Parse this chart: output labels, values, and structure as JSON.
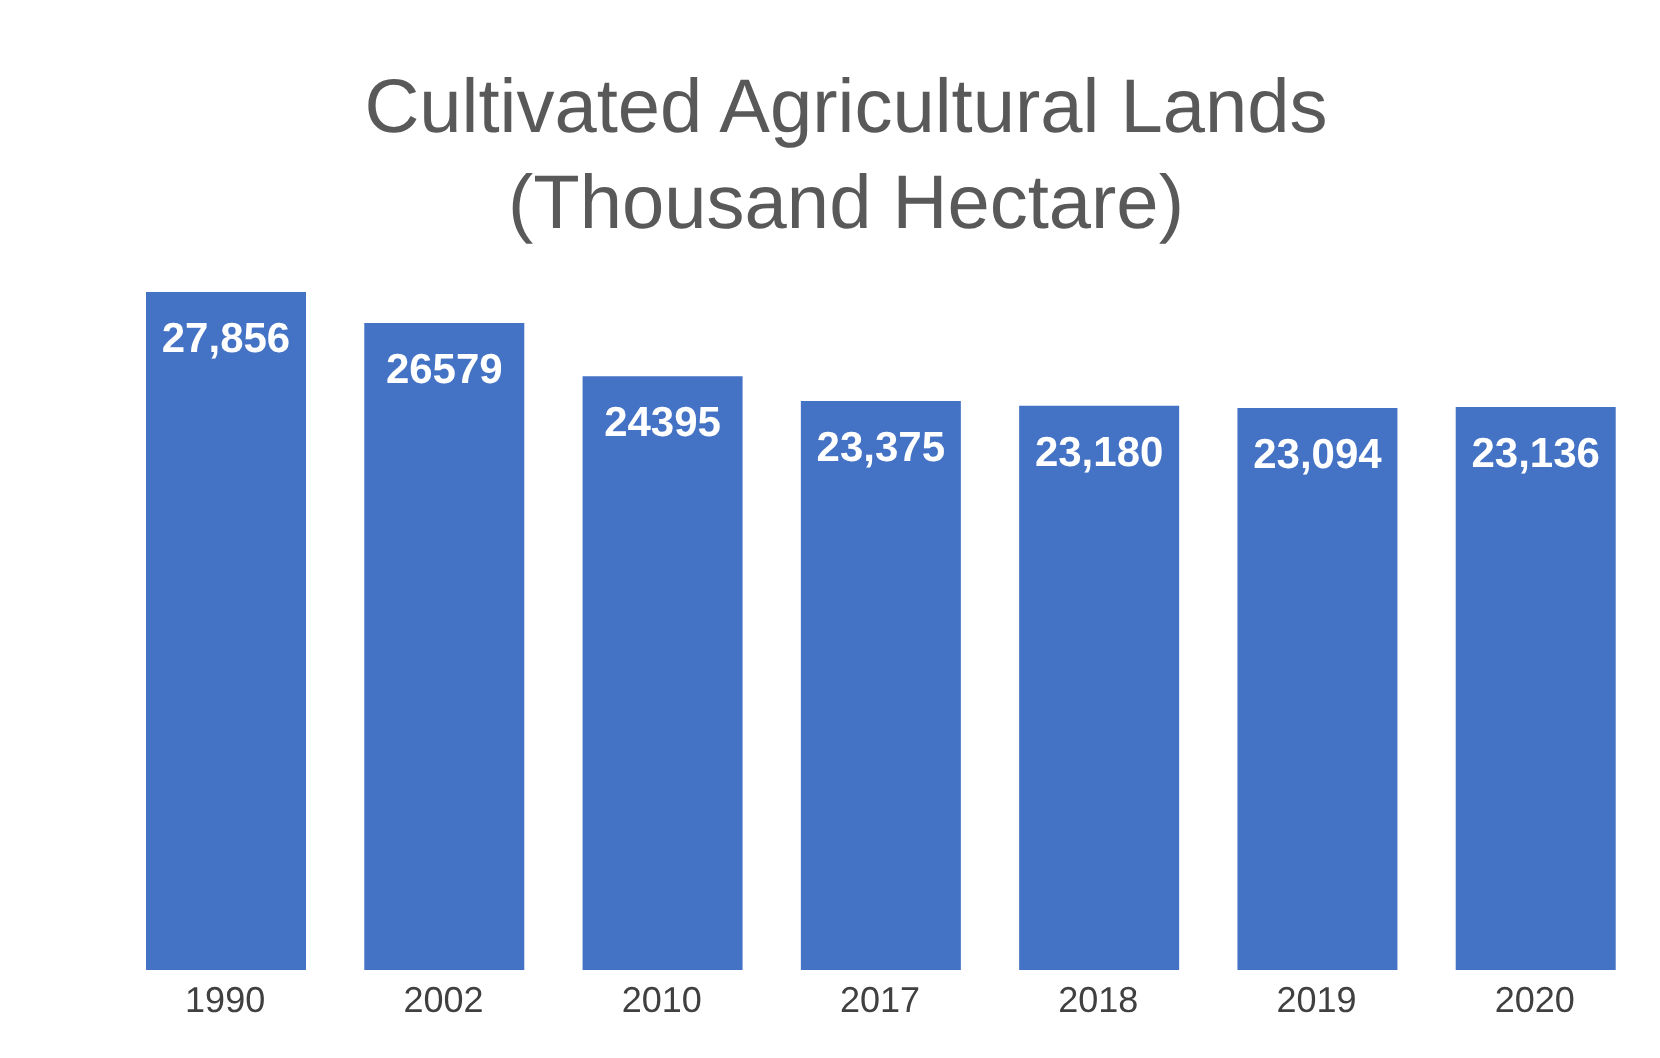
{
  "chart_data": {
    "type": "bar",
    "title": "Cultivated Agricultural Lands (Thousand Hectare)",
    "categories": [
      "1990",
      "2002",
      "2010",
      "2017",
      "2018",
      "2019",
      "2020"
    ],
    "values": [
      27856,
      26579,
      24395,
      23375,
      23180,
      23094,
      23136
    ],
    "value_labels": [
      "27,856",
      "26579",
      "24395",
      "23,375",
      "23,180",
      "23,094",
      "23,136"
    ],
    "color": "#4472c4"
  }
}
